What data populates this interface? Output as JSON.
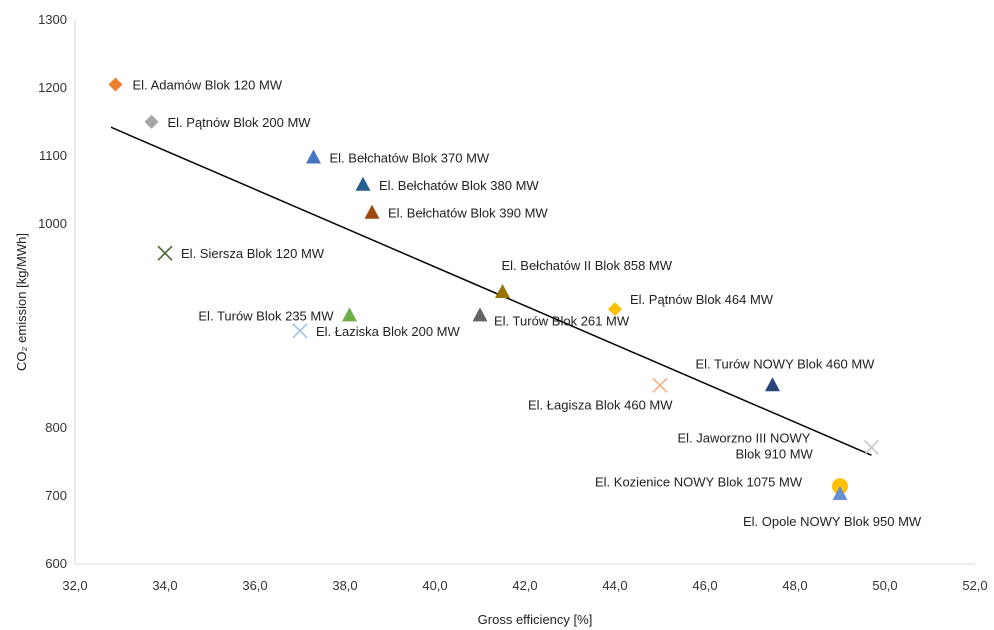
{
  "chart_data": {
    "type": "scatter",
    "xlabel": "Gross efficiency [%]",
    "ylabel": "CO₂ emission  [kg/MWh]",
    "xlim": [
      32,
      52
    ],
    "ylim": [
      600,
      1300
    ],
    "x_ticks": [
      "32,0",
      "34,0",
      "36,0",
      "38,0",
      "40,0",
      "42,0",
      "44,0",
      "46,0",
      "48,0",
      "50,0",
      "52,0"
    ],
    "y_ticks": [
      "600",
      "700",
      "800",
      "",
      "",
      "1000",
      "1100",
      "1200",
      "1300"
    ],
    "grid": false,
    "legend": "none",
    "points": [
      {
        "label": "El. Adamów Blok 120 MW",
        "x": 32.9,
        "y": 1217,
        "marker": "diamond",
        "color": "#ED7D31"
      },
      {
        "label": "El. Pątnów Blok 200 MW",
        "x": 33.7,
        "y": 1169,
        "marker": "diamond",
        "color": "#A5A5A5"
      },
      {
        "label": "El. Bełchatów Blok 370 MW",
        "x": 37.3,
        "y": 1123,
        "marker": "triangle",
        "color": "#4472C4"
      },
      {
        "label": "El. Bełchatów Blok 380 MW",
        "x": 38.4,
        "y": 1088,
        "marker": "triangle",
        "color": "#255E91"
      },
      {
        "label": "El. Bełchatów Blok 390 MW",
        "x": 38.6,
        "y": 1052,
        "marker": "triangle",
        "color": "#9E480E"
      },
      {
        "label": "El. Siersza Blok 120 MW",
        "x": 34.0,
        "y": 1000,
        "marker": "x",
        "color": "#43682B"
      },
      {
        "label": "El. Bełchatów II Blok 858 MW",
        "x": 41.5,
        "y": 950,
        "marker": "triangle",
        "color": "#997300"
      },
      {
        "label": "El. Pątnów Blok 464 MW",
        "x": 44.0,
        "y": 928,
        "marker": "diamond",
        "color": "#FFC000"
      },
      {
        "label": "El. Turów Blok 235 MW",
        "x": 38.1,
        "y": 920,
        "marker": "triangle",
        "color": "#70AD47"
      },
      {
        "label": "El. Turów Blok 261 MW",
        "x": 41.0,
        "y": 920,
        "marker": "triangle",
        "color": "#636363"
      },
      {
        "label": "El. Łaziska Blok 200 MW",
        "x": 37.0,
        "y": 900,
        "marker": "x",
        "color": "#9DC3E6"
      },
      {
        "label": "El. Turów NOWY Blok 460 MW",
        "x": 47.5,
        "y": 830,
        "marker": "triangle",
        "color": "#264478"
      },
      {
        "label": "El. Łagisza Blok 460 MW",
        "x": 45.0,
        "y": 830,
        "marker": "x",
        "color": "#F4B183"
      },
      {
        "label": "El. Jaworzno III NOWY Blok 910 MW",
        "x": 49.7,
        "y": 750,
        "marker": "x",
        "color": "#C9C9C9"
      },
      {
        "label": "El. Kozienice NOWY Blok 1075 MW",
        "x": 49.0,
        "y": 700,
        "marker": "circle",
        "color": "#FFC000"
      },
      {
        "label": "El. Opole NOWY Blok 950 MW",
        "x": 49.0,
        "y": 690,
        "marker": "triangle",
        "color": "#698ED0"
      }
    ],
    "trendline": {
      "type": "linear",
      "x": [
        32.8,
        49.7
      ],
      "y": [
        1162,
        740
      ],
      "color": "#000000"
    }
  }
}
